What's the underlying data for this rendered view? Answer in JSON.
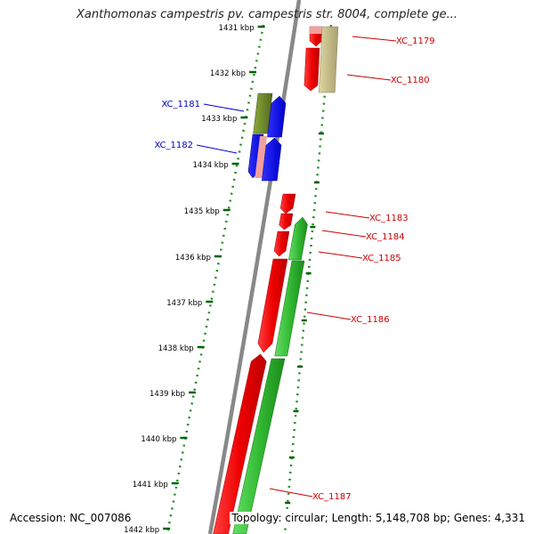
{
  "title": "Xanthomonas campestris pv. campestris str. 8004, complete ge...",
  "footer": {
    "accession": "Accession: NC_007086",
    "summary": "Topology: circular; Length: 5,148,708 bp; Genes: 4,331"
  },
  "scale": {
    "unit": "kbp",
    "ticks": [
      "1431 kbp",
      "1432 kbp",
      "1433 kbp",
      "1434 kbp",
      "1435 kbp",
      "1436 kbp",
      "1437 kbp",
      "1438 kbp",
      "1439 kbp",
      "1440 kbp",
      "1441 kbp",
      "1442 kbp"
    ]
  },
  "genes": [
    {
      "label": "XC_1179",
      "color": "#cc0000"
    },
    {
      "label": "XC_1180",
      "color": "#cc0000"
    },
    {
      "label": "XC_1181",
      "color": "#0000cc"
    },
    {
      "label": "XC_1182",
      "color": "#0000cc"
    },
    {
      "label": "XC_1183",
      "color": "#cc0000"
    },
    {
      "label": "XC_1184",
      "color": "#cc0000"
    },
    {
      "label": "XC_1185",
      "color": "#cc0000"
    },
    {
      "label": "XC_1186",
      "color": "#cc0000"
    },
    {
      "label": "XC_1187",
      "color": "#cc0000"
    }
  ],
  "colors": {
    "backbone": "#888888",
    "dots": "#228b22",
    "tick_mark": "#006400",
    "red": "#ff0000",
    "green": "#33cc33",
    "blue": "#0000ff",
    "olive": "#6b8e23",
    "khaki": "#c8c08a",
    "pink": "#f0a0a0"
  }
}
